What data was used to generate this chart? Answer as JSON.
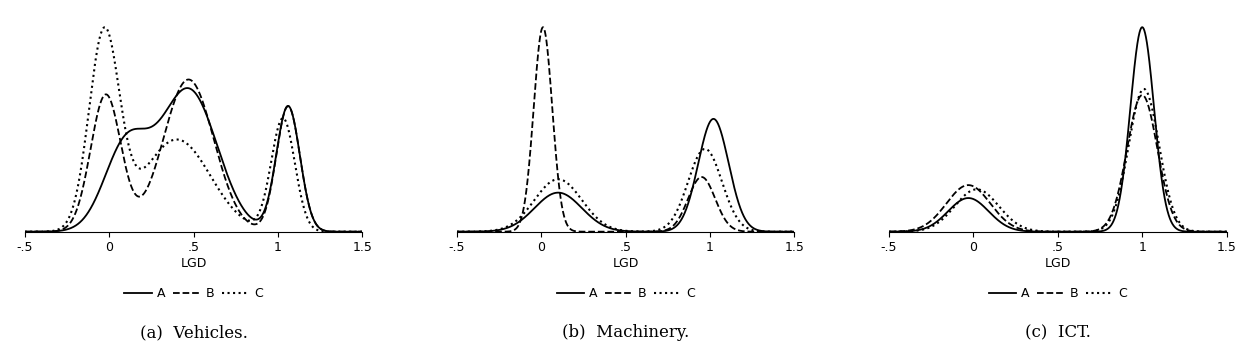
{
  "panels": [
    {
      "title": "(a)  Vehicles.",
      "xlabel": "LGD",
      "xlim": [
        -0.5,
        1.5
      ],
      "xticks": [
        -0.5,
        0,
        0.5,
        1,
        1.5
      ],
      "xticklabels": [
        "-.5",
        "0",
        ".5",
        "1",
        "1.5"
      ]
    },
    {
      "title": "(b)  Machinery.",
      "xlabel": "LGD",
      "xlim": [
        -0.5,
        1.5
      ],
      "xticks": [
        -0.5,
        0,
        0.5,
        1,
        1.5
      ],
      "xticklabels": [
        "-.5",
        "0",
        ".5",
        "1",
        "1.5"
      ]
    },
    {
      "title": "(c)  ICT.",
      "xlabel": "LGD",
      "xlim": [
        -0.5,
        1.5
      ],
      "xticks": [
        -0.5,
        0,
        0.5,
        1,
        1.5
      ],
      "xticklabels": [
        "-.5",
        "0",
        ".5",
        "1",
        "1.5"
      ]
    }
  ],
  "line_color": "#000000",
  "linewidth": 1.2,
  "background_color": "#ffffff"
}
